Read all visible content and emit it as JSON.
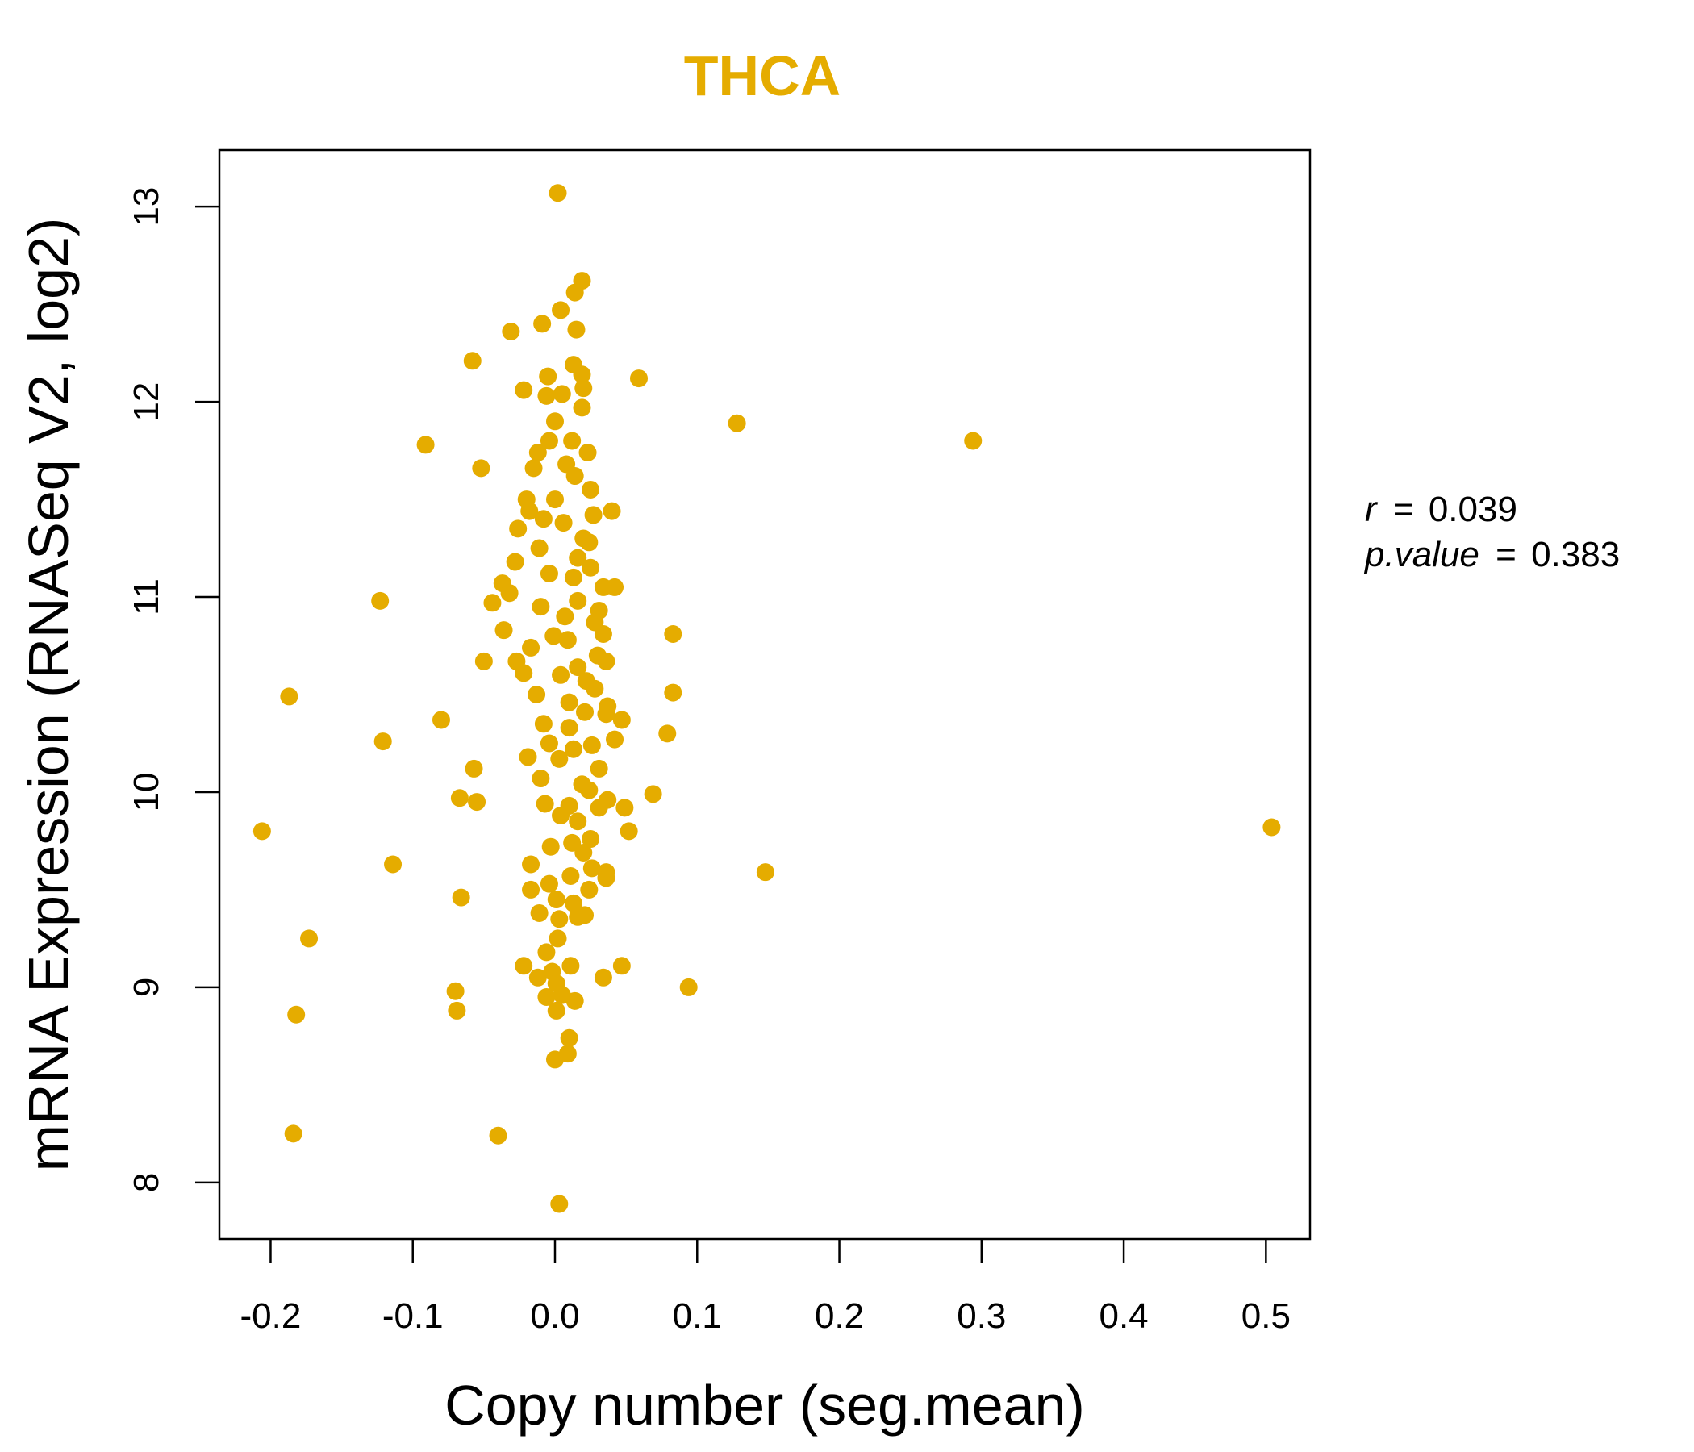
{
  "colors": {
    "accent": "#E5AC00",
    "axis": "#000000"
  },
  "chart_data": {
    "type": "scatter",
    "title": "THCA",
    "xlabel": "Copy number (seg.mean)",
    "ylabel": "mRNA Expression (RNASeq V2, log2)",
    "xlim": [
      -0.236,
      0.531
    ],
    "ylim": [
      7.71,
      13.29
    ],
    "xticks": [
      -0.2,
      -0.1,
      0.0,
      0.1,
      0.2,
      0.3,
      0.4,
      0.5
    ],
    "xtick_labels": [
      "-0.2",
      "-0.1",
      "0.0",
      "0.1",
      "0.2",
      "0.3",
      "0.4",
      "0.5"
    ],
    "yticks": [
      8,
      9,
      10,
      11,
      12,
      13
    ],
    "ytick_labels": [
      "8",
      "9",
      "10",
      "11",
      "12",
      "13"
    ],
    "grid": false,
    "annotation": {
      "r_label": "r",
      "r_value": "0.039",
      "p_label": "p.value",
      "p_value": "0.383",
      "eq": "="
    },
    "points": [
      [
        0.002,
        13.07
      ],
      [
        0.019,
        12.62
      ],
      [
        0.014,
        12.56
      ],
      [
        0.004,
        12.47
      ],
      [
        -0.009,
        12.4
      ],
      [
        0.015,
        12.37
      ],
      [
        -0.031,
        12.36
      ],
      [
        -0.058,
        12.21
      ],
      [
        0.013,
        12.19
      ],
      [
        0.019,
        12.14
      ],
      [
        0.059,
        12.12
      ],
      [
        -0.005,
        12.13
      ],
      [
        0.02,
        12.07
      ],
      [
        -0.022,
        12.06
      ],
      [
        -0.006,
        12.03
      ],
      [
        0.005,
        12.04
      ],
      [
        0.019,
        11.97
      ],
      [
        0.128,
        11.89
      ],
      [
        0.0,
        11.9
      ],
      [
        0.294,
        11.8
      ],
      [
        -0.091,
        11.78
      ],
      [
        0.012,
        11.8
      ],
      [
        -0.004,
        11.8
      ],
      [
        -0.012,
        11.74
      ],
      [
        0.023,
        11.74
      ],
      [
        -0.052,
        11.66
      ],
      [
        0.008,
        11.68
      ],
      [
        -0.015,
        11.66
      ],
      [
        0.014,
        11.62
      ],
      [
        0.025,
        11.55
      ],
      [
        -0.02,
        11.5
      ],
      [
        0.0,
        11.5
      ],
      [
        0.04,
        11.44
      ],
      [
        -0.018,
        11.44
      ],
      [
        0.027,
        11.42
      ],
      [
        -0.008,
        11.4
      ],
      [
        0.006,
        11.38
      ],
      [
        -0.026,
        11.35
      ],
      [
        0.02,
        11.3
      ],
      [
        0.024,
        11.28
      ],
      [
        -0.011,
        11.25
      ],
      [
        0.016,
        11.2
      ],
      [
        -0.028,
        11.18
      ],
      [
        0.025,
        11.15
      ],
      [
        -0.004,
        11.12
      ],
      [
        0.013,
        11.1
      ],
      [
        -0.037,
        11.07
      ],
      [
        0.042,
        11.05
      ],
      [
        -0.032,
        11.02
      ],
      [
        0.034,
        11.05
      ],
      [
        -0.123,
        10.98
      ],
      [
        -0.044,
        10.97
      ],
      [
        0.016,
        10.98
      ],
      [
        0.031,
        10.93
      ],
      [
        -0.01,
        10.95
      ],
      [
        0.007,
        10.9
      ],
      [
        0.028,
        10.87
      ],
      [
        -0.036,
        10.83
      ],
      [
        0.083,
        10.81
      ],
      [
        0.034,
        10.81
      ],
      [
        -0.001,
        10.8
      ],
      [
        0.009,
        10.78
      ],
      [
        -0.017,
        10.74
      ],
      [
        0.03,
        10.7
      ],
      [
        -0.05,
        10.67
      ],
      [
        -0.027,
        10.67
      ],
      [
        0.036,
        10.67
      ],
      [
        0.016,
        10.64
      ],
      [
        -0.022,
        10.61
      ],
      [
        0.004,
        10.6
      ],
      [
        0.022,
        10.57
      ],
      [
        0.028,
        10.53
      ],
      [
        0.083,
        10.51
      ],
      [
        -0.187,
        10.49
      ],
      [
        -0.013,
        10.5
      ],
      [
        0.01,
        10.46
      ],
      [
        0.037,
        10.44
      ],
      [
        0.021,
        10.41
      ],
      [
        0.036,
        10.4
      ],
      [
        -0.08,
        10.37
      ],
      [
        0.047,
        10.37
      ],
      [
        -0.008,
        10.35
      ],
      [
        0.01,
        10.33
      ],
      [
        0.079,
        10.3
      ],
      [
        0.042,
        10.27
      ],
      [
        -0.121,
        10.26
      ],
      [
        -0.004,
        10.25
      ],
      [
        0.026,
        10.24
      ],
      [
        0.013,
        10.22
      ],
      [
        -0.019,
        10.18
      ],
      [
        0.003,
        10.17
      ],
      [
        -0.057,
        10.12
      ],
      [
        0.031,
        10.12
      ],
      [
        -0.01,
        10.07
      ],
      [
        0.019,
        10.04
      ],
      [
        0.024,
        10.01
      ],
      [
        0.069,
        9.99
      ],
      [
        -0.067,
        9.97
      ],
      [
        0.037,
        9.96
      ],
      [
        -0.055,
        9.95
      ],
      [
        -0.007,
        9.94
      ],
      [
        0.01,
        9.93
      ],
      [
        0.049,
        9.92
      ],
      [
        0.031,
        9.92
      ],
      [
        0.004,
        9.88
      ],
      [
        0.016,
        9.85
      ],
      [
        -0.206,
        9.8
      ],
      [
        0.052,
        9.8
      ],
      [
        0.504,
        9.82
      ],
      [
        0.025,
        9.76
      ],
      [
        0.012,
        9.74
      ],
      [
        -0.003,
        9.72
      ],
      [
        0.02,
        9.69
      ],
      [
        -0.017,
        9.63
      ],
      [
        0.026,
        9.61
      ],
      [
        -0.114,
        9.63
      ],
      [
        0.148,
        9.59
      ],
      [
        0.036,
        9.59
      ],
      [
        0.011,
        9.57
      ],
      [
        0.036,
        9.56
      ],
      [
        -0.004,
        9.53
      ],
      [
        0.024,
        9.5
      ],
      [
        -0.017,
        9.5
      ],
      [
        -0.066,
        9.46
      ],
      [
        0.001,
        9.45
      ],
      [
        0.013,
        9.43
      ],
      [
        -0.011,
        9.38
      ],
      [
        0.021,
        9.37
      ],
      [
        0.003,
        9.35
      ],
      [
        0.016,
        9.36
      ],
      [
        -0.173,
        9.25
      ],
      [
        0.002,
        9.25
      ],
      [
        -0.006,
        9.18
      ],
      [
        0.047,
        9.11
      ],
      [
        -0.022,
        9.11
      ],
      [
        0.011,
        9.11
      ],
      [
        -0.002,
        9.08
      ],
      [
        -0.012,
        9.05
      ],
      [
        0.034,
        9.05
      ],
      [
        0.001,
        9.02
      ],
      [
        0.094,
        9.0
      ],
      [
        -0.07,
        8.98
      ],
      [
        0.005,
        8.96
      ],
      [
        -0.006,
        8.95
      ],
      [
        0.014,
        8.93
      ],
      [
        -0.069,
        8.88
      ],
      [
        0.001,
        8.88
      ],
      [
        -0.182,
        8.86
      ],
      [
        0.01,
        8.74
      ],
      [
        0.009,
        8.66
      ],
      [
        0.0,
        8.63
      ],
      [
        -0.04,
        8.24
      ],
      [
        -0.184,
        8.25
      ],
      [
        0.003,
        7.89
      ]
    ]
  }
}
